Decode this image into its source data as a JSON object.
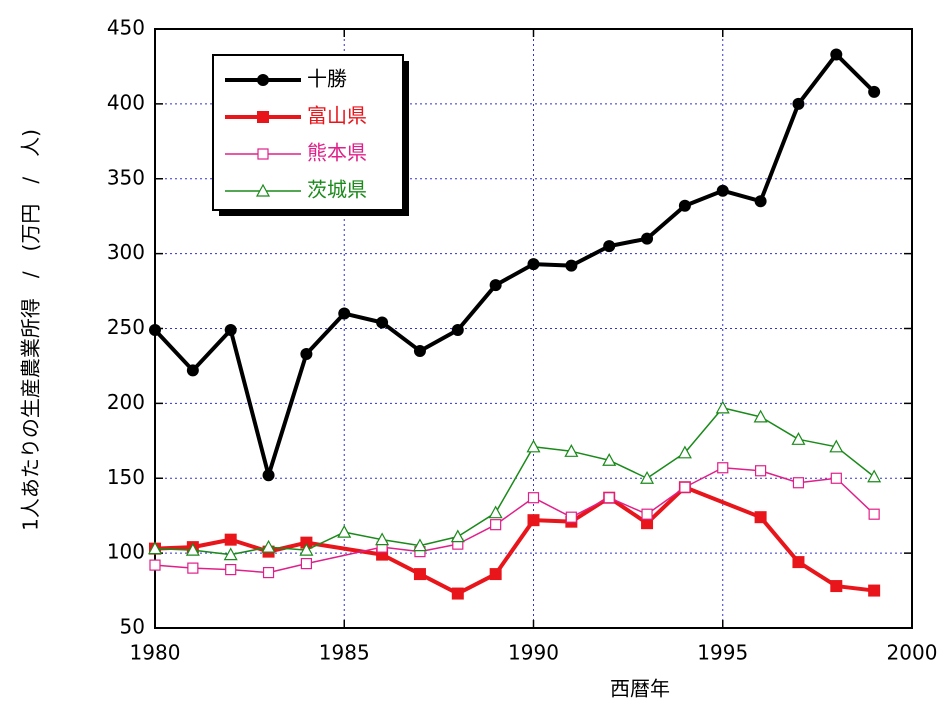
{
  "chart_data": {
    "type": "line",
    "xlabel": "西暦年",
    "ylabel": "1人あたりの生産農業所得　/　(万円　/　人)",
    "xlim": [
      1980,
      2000
    ],
    "xticks": [
      1980,
      1985,
      1990,
      1995,
      2000
    ],
    "ylim": [
      50,
      450
    ],
    "yticks": [
      50,
      100,
      150,
      200,
      250,
      300,
      350,
      400,
      450
    ],
    "grid": true,
    "legend": "upper left",
    "series": [
      {
        "name": "十勝",
        "color": "#000000",
        "marker": "circle",
        "x": [
          1980,
          1981,
          1982,
          1983,
          1984,
          1985,
          1986,
          1987,
          1988,
          1989,
          1990,
          1991,
          1992,
          1993,
          1994,
          1995,
          1996,
          1997,
          1998,
          1999
        ],
        "values": [
          249,
          222,
          249,
          152,
          233,
          260,
          254,
          235,
          249,
          279,
          293,
          292,
          305,
          310,
          332,
          342,
          335,
          400,
          433,
          408
        ]
      },
      {
        "name": "富山県",
        "color": "#e8151b",
        "marker": "square",
        "x": [
          1980,
          1981,
          1982,
          1983,
          1984,
          1986,
          1987,
          1988,
          1989,
          1990,
          1991,
          1992,
          1993,
          1994,
          1996,
          1997,
          1998,
          1999
        ],
        "values": [
          103,
          104,
          109,
          101,
          107,
          99,
          86,
          73,
          86,
          122,
          121,
          137,
          120,
          144,
          124,
          94,
          78,
          75
        ]
      },
      {
        "name": "熊本県",
        "color": "#e0208a",
        "marker": "square-open",
        "x": [
          1980,
          1981,
          1982,
          1983,
          1984,
          1986,
          1987,
          1988,
          1989,
          1990,
          1991,
          1992,
          1993,
          1994,
          1995,
          1996,
          1997,
          1998,
          1999
        ],
        "values": [
          92,
          90,
          89,
          87,
          93,
          104,
          101,
          106,
          119,
          137,
          124,
          137,
          126,
          144,
          157,
          155,
          147,
          150,
          126
        ]
      },
      {
        "name": "茨城県",
        "color": "#1a8a1a",
        "marker": "triangle-open",
        "x": [
          1980,
          1981,
          1982,
          1983,
          1984,
          1985,
          1986,
          1987,
          1988,
          1989,
          1990,
          1991,
          1992,
          1993,
          1994,
          1995,
          1996,
          1997,
          1998,
          1999
        ],
        "values": [
          103,
          102,
          99,
          104,
          102,
          114,
          109,
          105,
          111,
          127,
          171,
          168,
          162,
          150,
          167,
          197,
          191,
          176,
          171,
          151
        ]
      }
    ]
  }
}
